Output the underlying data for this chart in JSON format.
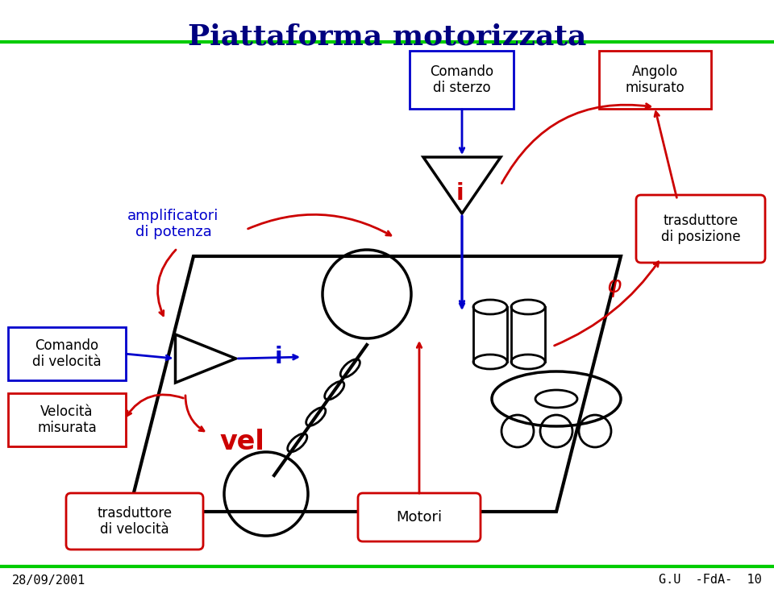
{
  "title": "Piattaforma motorizzata",
  "title_color": "#000080",
  "bg_color": "#ffffff",
  "green_line_color": "#00cc00",
  "footer_left": "28/09/2001",
  "footer_right": "G.U  -FdA-  10",
  "footer_color": "#000000",
  "blue_color": "#0000cc",
  "red_color": "#cc0000",
  "black_color": "#000000"
}
